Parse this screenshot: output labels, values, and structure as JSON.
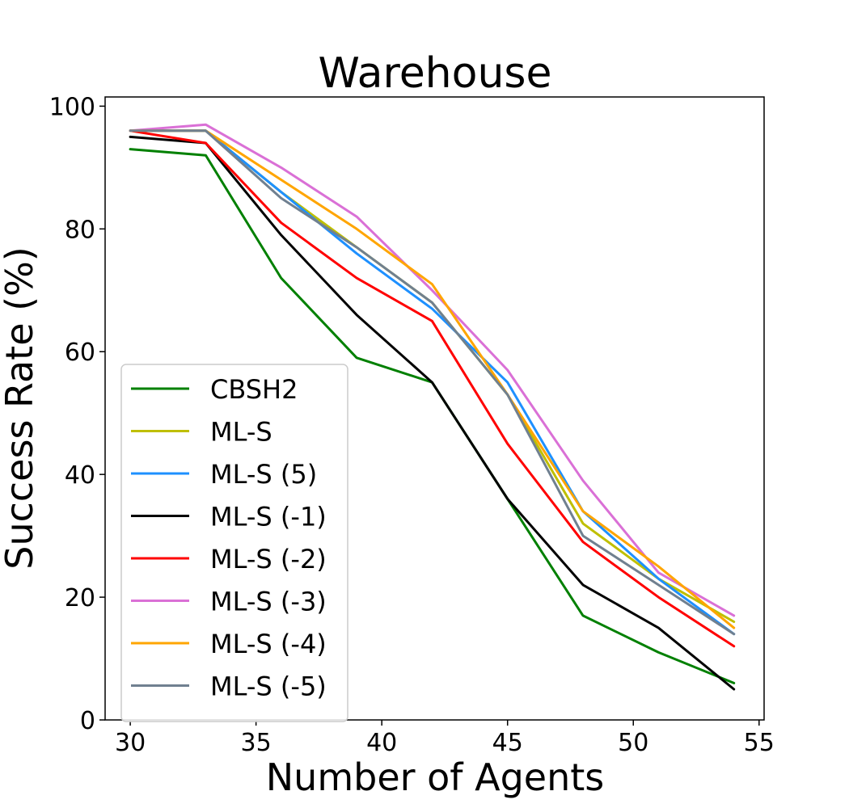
{
  "chart_data": {
    "type": "line",
    "title": "Warehouse",
    "xlabel": "Number of Agents",
    "ylabel": "Success Rate (%)",
    "xlim": [
      29,
      55.2
    ],
    "ylim": [
      0,
      101.5
    ],
    "x_ticks": [
      30,
      35,
      40,
      45,
      50,
      55
    ],
    "y_ticks": [
      0,
      20,
      40,
      60,
      80,
      100
    ],
    "grid": false,
    "legend_position": "lower-left",
    "x": [
      30,
      33,
      36,
      39,
      42,
      45,
      48,
      51,
      54
    ],
    "series": [
      {
        "name": "CBSH2",
        "color": "#008000",
        "values": [
          93,
          92,
          72,
          59,
          55,
          36,
          17,
          11,
          6
        ]
      },
      {
        "name": "ML-S",
        "color": "#bfbf00",
        "values": [
          96,
          96,
          86,
          77,
          68,
          53,
          32,
          23,
          16
        ]
      },
      {
        "name": "ML-S (5)",
        "color": "#1e90ff",
        "values": [
          96,
          96,
          86,
          76,
          67,
          55,
          34,
          23,
          14
        ]
      },
      {
        "name": "ML-S (-1)",
        "color": "#000000",
        "values": [
          95,
          94,
          79,
          66,
          55,
          36,
          22,
          15,
          5
        ]
      },
      {
        "name": "ML-S (-2)",
        "color": "#ff0000",
        "values": [
          96,
          94,
          81,
          72,
          65,
          45,
          29,
          20,
          12
        ]
      },
      {
        "name": "ML-S (-3)",
        "color": "#da70d6",
        "values": [
          96,
          97,
          90,
          82,
          70,
          57,
          39,
          24,
          17
        ]
      },
      {
        "name": "ML-S (-4)",
        "color": "#ffa500",
        "values": [
          96,
          96,
          88,
          80,
          71,
          53,
          34,
          25,
          15
        ]
      },
      {
        "name": "ML-S (-5)",
        "color": "#708090",
        "values": [
          96,
          96,
          85,
          77,
          68,
          53,
          30,
          22,
          14
        ]
      }
    ]
  }
}
